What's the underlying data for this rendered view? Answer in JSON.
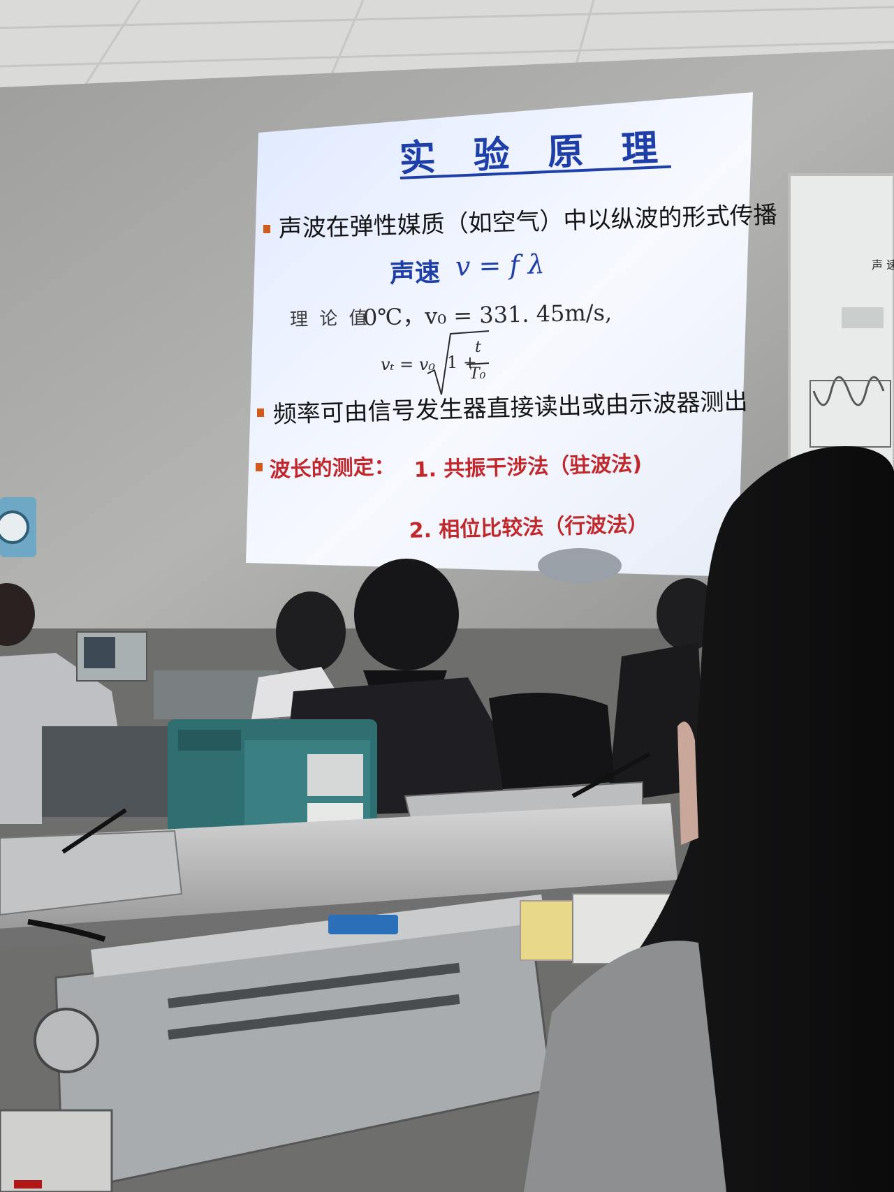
{
  "slide": {
    "title": "实 验 原 理",
    "bullet1": "声波在弹性媒质（如空气）中以纵波的形式传播",
    "speed_label": "声速",
    "speed_formula": "v = f λ",
    "theory_label": "理 论 值",
    "theory_value": "0℃，v₀ = 331. 45m/s,",
    "vt_formula": "vₜ = v₀",
    "sqrt_body": "1 +",
    "frac_num": "t",
    "frac_den": "T₀",
    "bullet2": "频率可由信号发生器直接读出或由示波器测出",
    "bullet3_label": "波长的测定：",
    "method1": "1. 共振干涉法（驻波法)",
    "method2": "2. 相位比较法（行波法）"
  },
  "wall_poster": {
    "heading_fragment": "声 速"
  },
  "colors": {
    "slide_title": "#1f3fa8",
    "slide_red_text": "#c0282c",
    "bullet": "#d35a1d",
    "wall": "#a8a8a6"
  }
}
